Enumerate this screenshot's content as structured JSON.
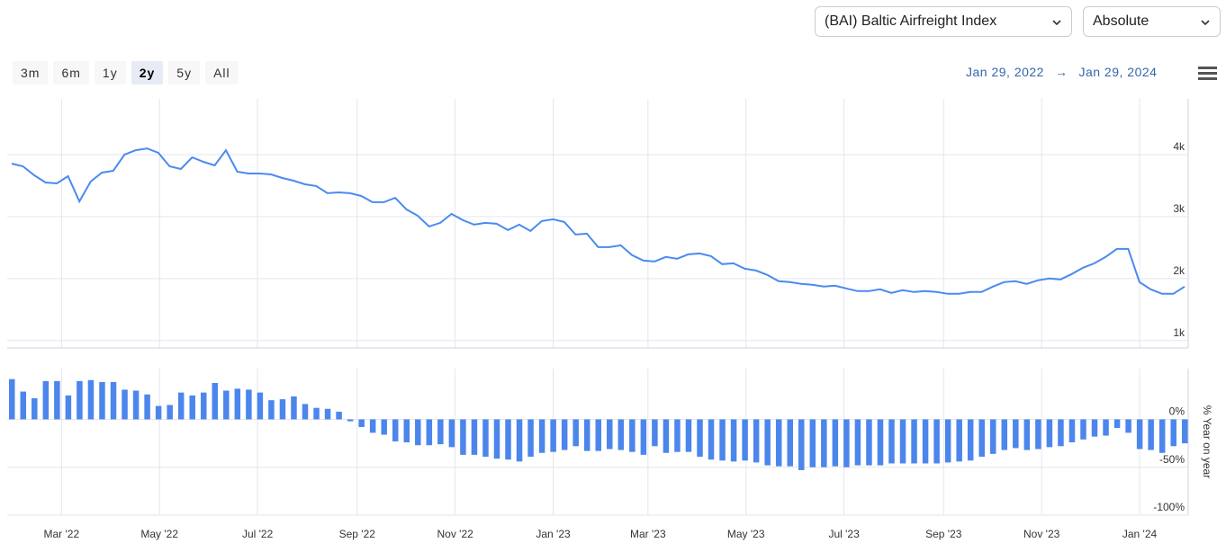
{
  "controls": {
    "series_select": "(BAI) Baltic Airfreight Index",
    "mode_select": "Absolute",
    "ranges": [
      "3m",
      "6m",
      "1y",
      "2y",
      "5y",
      "All"
    ],
    "selected_range": "2y",
    "range": {
      "start": "Jan 29, 2022",
      "end": "Jan 29, 2024"
    },
    "arrow": "→"
  },
  "chart_data": [
    {
      "type": "line",
      "color": "#4a8af0",
      "grid": true,
      "ylim": [
        880,
        4900
      ],
      "yticks": [
        {
          "value": 1000,
          "label": "1k"
        },
        {
          "value": 2000,
          "label": "2k"
        },
        {
          "value": 3000,
          "label": "3k"
        },
        {
          "value": 4000,
          "label": "4k"
        }
      ],
      "values": [
        3855,
        3812,
        3667,
        3551,
        3536,
        3652,
        3246,
        3565,
        3710,
        3739,
        4000,
        4072,
        4101,
        4029,
        3812,
        3768,
        3957,
        3884,
        3826,
        4072,
        3725,
        3696,
        3696,
        3681,
        3623,
        3580,
        3522,
        3493,
        3377,
        3391,
        3377,
        3333,
        3232,
        3232,
        3304,
        3116,
        3015,
        2841,
        2899,
        3044,
        2942,
        2870,
        2899,
        2884,
        2783,
        2870,
        2768,
        2928,
        2957,
        2913,
        2710,
        2725,
        2507,
        2507,
        2536,
        2377,
        2290,
        2275,
        2348,
        2319,
        2391,
        2406,
        2362,
        2232,
        2246,
        2159,
        2130,
        2058,
        1957,
        1942,
        1913,
        1899,
        1870,
        1884,
        1841,
        1797,
        1797,
        1826,
        1768,
        1812,
        1783,
        1797,
        1783,
        1754,
        1754,
        1783,
        1783,
        1870,
        1942,
        1957,
        1913,
        1971,
        2000,
        1986,
        2073,
        2174,
        2246,
        2348,
        2478,
        2478,
        1942,
        1826,
        1754,
        1754,
        1870
      ]
    },
    {
      "type": "bar",
      "color": "#4c86ec",
      "grid": true,
      "ylabel": "% Year on year",
      "ylim": [
        -100,
        53
      ],
      "yticks": [
        {
          "value": -100,
          "label": "-100%"
        },
        {
          "value": -50,
          "label": "-50%"
        },
        {
          "value": 0,
          "label": "0%"
        }
      ],
      "xticks": [
        {
          "value": "2022-03",
          "label": "Mar '22"
        },
        {
          "value": "2022-05",
          "label": "May '22"
        },
        {
          "value": "2022-07",
          "label": "Jul '22"
        },
        {
          "value": "2022-09",
          "label": "Sep '22"
        },
        {
          "value": "2022-11",
          "label": "Nov '22"
        },
        {
          "value": "2023-01",
          "label": "Jan '23"
        },
        {
          "value": "2023-03",
          "label": "Mar '23"
        },
        {
          "value": "2023-05",
          "label": "May '23"
        },
        {
          "value": "2023-07",
          "label": "Jul '23"
        },
        {
          "value": "2023-09",
          "label": "Sep '23"
        },
        {
          "value": "2023-11",
          "label": "Nov '23"
        },
        {
          "value": "2024-01",
          "label": "Jan '24"
        }
      ],
      "values": [
        42,
        29,
        22,
        40,
        40,
        25,
        40,
        41,
        39,
        39,
        31,
        30,
        26,
        14,
        15,
        28,
        25,
        28,
        38,
        30,
        32,
        31,
        28,
        20,
        21,
        24,
        16,
        12,
        11,
        8,
        -2,
        -8,
        -14,
        -16,
        -23,
        -24,
        -27,
        -27,
        -26,
        -29,
        -37,
        -37,
        -39,
        -41,
        -42,
        -44,
        -39,
        -35,
        -34,
        -32,
        -28,
        -33,
        -33,
        -31,
        -32,
        -34,
        -37,
        -28,
        -35,
        -34,
        -34,
        -39,
        -42,
        -43,
        -44,
        -43,
        -45,
        -48,
        -49,
        -49,
        -53,
        -50,
        -50,
        -49,
        -50,
        -48,
        -48,
        -48,
        -46,
        -46,
        -46,
        -46,
        -46,
        -45,
        -44,
        -43,
        -39,
        -36,
        -32,
        -30,
        -32,
        -31,
        -29,
        -28,
        -24,
        -21,
        -18,
        -17,
        -9,
        -14,
        -31,
        -32,
        -35,
        -28,
        -25
      ]
    }
  ]
}
